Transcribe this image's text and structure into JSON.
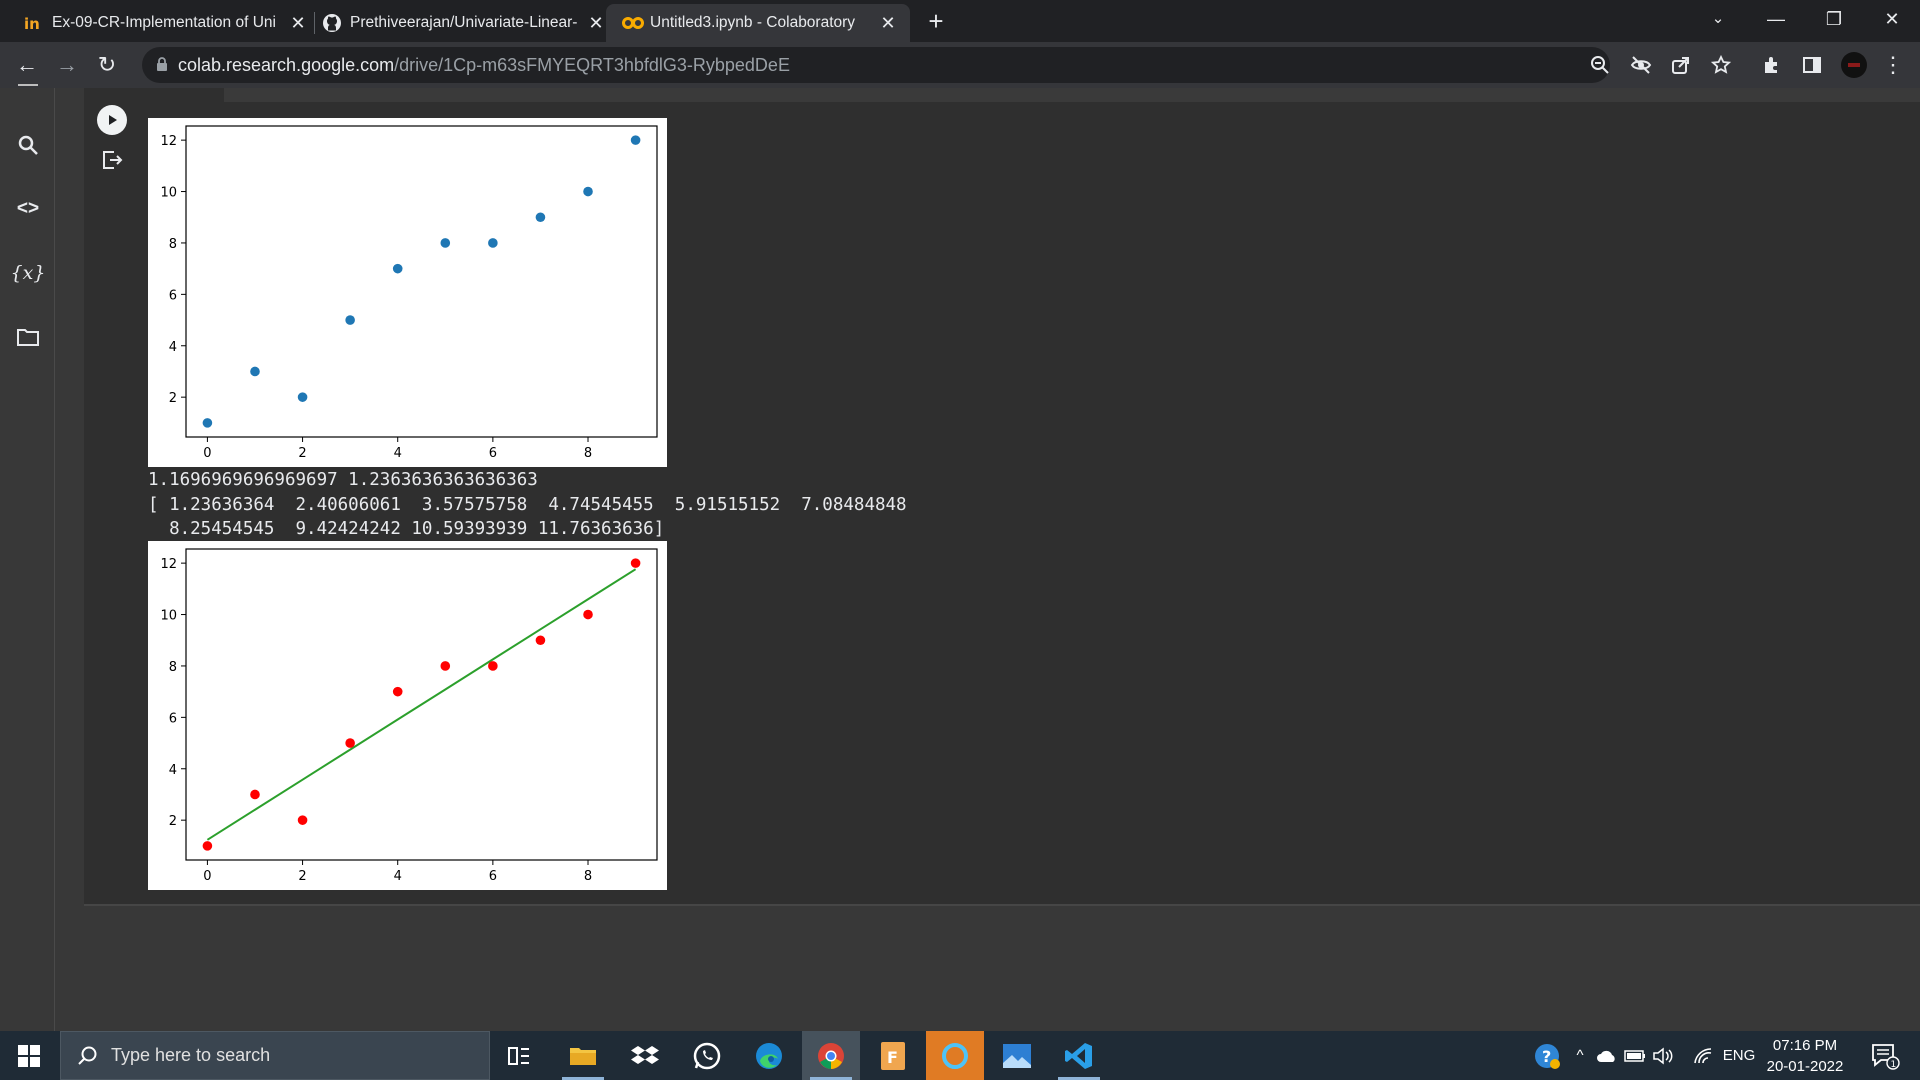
{
  "browser": {
    "tabs": [
      {
        "title": "Ex-09-CR-Implementation of Uni",
        "active": false,
        "favicon": "linkedin-like-icon"
      },
      {
        "title": "Prethiveerajan/Univariate-Linear-",
        "active": false,
        "favicon": "github-icon"
      },
      {
        "title": "Untitled3.ipynb - Colaboratory",
        "active": true,
        "favicon": "colab-icon"
      }
    ],
    "url_host": "colab.research.google.com",
    "url_path": "/drive/1Cp-m63sFMYEQRT3hbfdlG3-RybpedDeE"
  },
  "colab": {
    "sidebar_icons": [
      "search-icon",
      "code-icon",
      "variables-icon",
      "folder-icon"
    ],
    "variables_label": "{x}",
    "code_label": "<>"
  },
  "output": {
    "line1": "1.1696969696969697 1.2363636363636363",
    "line2": "[ 1.23636364  2.40606061  3.57575758  4.74545455  5.91515152  7.08484848",
    "line3": "  8.25454545  9.42424242 10.59393939 11.76363636]"
  },
  "chart_data": [
    {
      "type": "scatter",
      "title": "",
      "xlabel": "",
      "ylabel": "",
      "x": [
        0,
        1,
        2,
        3,
        4,
        5,
        6,
        7,
        8,
        9
      ],
      "y": [
        1,
        3,
        2,
        5,
        7,
        8,
        8,
        9,
        10,
        12
      ],
      "xticks": [
        0,
        2,
        4,
        6,
        8
      ],
      "yticks": [
        2,
        4,
        6,
        8,
        10,
        12
      ],
      "xlim": [
        -0.45,
        9.45
      ],
      "ylim": [
        0.45,
        12.55
      ],
      "color": "#1f77b4",
      "grid": false
    },
    {
      "type": "scatter",
      "title": "",
      "xlabel": "",
      "ylabel": "",
      "x": [
        0,
        1,
        2,
        3,
        4,
        5,
        6,
        7,
        8,
        9
      ],
      "y": [
        1,
        3,
        2,
        5,
        7,
        8,
        8,
        9,
        10,
        12
      ],
      "xticks": [
        0,
        2,
        4,
        6,
        8
      ],
      "yticks": [
        2,
        4,
        6,
        8,
        10,
        12
      ],
      "xlim": [
        -0.45,
        9.45
      ],
      "ylim": [
        0.45,
        12.55
      ],
      "color": "#ff0000",
      "grid": false,
      "series": [
        {
          "values": [
            1.23636364,
            2.40606061,
            3.57575758,
            4.74545455,
            5.91515152,
            7.08484848,
            8.25454545,
            9.42424242,
            10.59393939,
            11.76363636
          ],
          "kind": "line",
          "color": "#2ca02c"
        }
      ]
    }
  ],
  "taskbar": {
    "search_placeholder": "Type here to search",
    "apps": [
      "task-view-icon",
      "file-explorer-icon",
      "dropbox-icon",
      "whatsapp-icon",
      "edge-icon",
      "chrome-icon",
      "foxit-icon",
      "cortana-icon",
      "photos-icon",
      "vscode-icon"
    ],
    "language": "ENG",
    "time": "07:16 PM",
    "date": "20-01-2022",
    "notification_count": "1"
  }
}
